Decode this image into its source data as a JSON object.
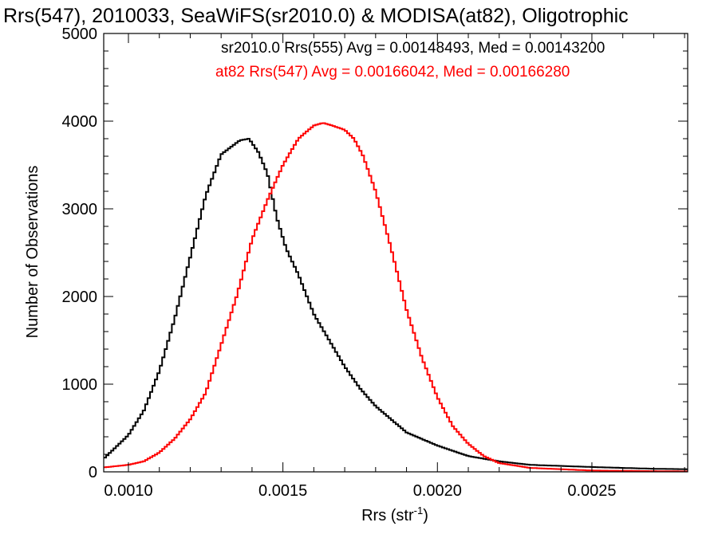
{
  "chart_data": {
    "type": "line",
    "title": "Rrs(547), 2010033, SeaWiFS(sr2010.0) & MODISA(at82), Oligotrophic",
    "xlabel": "Rrs (str",
    "xlabel_sup": "-1",
    "xlabel_close": ")",
    "ylabel": "Number of Observations",
    "xlim": [
      0.00092,
      0.00281
    ],
    "ylim": [
      0,
      5000
    ],
    "xticks": [
      0.001,
      0.0015,
      0.002,
      0.0025
    ],
    "xtick_labels": [
      "0.0010",
      "0.0015",
      "0.0020",
      "0.0025"
    ],
    "yticks": [
      0,
      1000,
      2000,
      3000,
      4000,
      5000
    ],
    "ytick_labels": [
      "0",
      "1000",
      "2000",
      "3000",
      "4000",
      "5000"
    ],
    "grid": false,
    "legend_placement": "top",
    "annotations": [
      {
        "text": "sr2010.0 Rrs(555) Avg = 0.00148493, Med = 0.00143200",
        "color": "#000000"
      },
      {
        "text": "at82 Rrs(547) Avg = 0.00166042, Med = 0.00166280",
        "color": "#ff0000"
      }
    ],
    "series": [
      {
        "name": "sr2010.0 Rrs(555)",
        "color": "#000000",
        "x": [
          0.00092,
          0.00095,
          0.001,
          0.00105,
          0.0011,
          0.00115,
          0.0012,
          0.00125,
          0.0013,
          0.00133,
          0.00136,
          0.00139,
          0.00142,
          0.00145,
          0.00148,
          0.00151,
          0.00155,
          0.0016,
          0.00165,
          0.0017,
          0.00175,
          0.0018,
          0.0019,
          0.002,
          0.0021,
          0.0022,
          0.0023,
          0.0025,
          0.0027,
          0.00281
        ],
        "y": [
          150,
          250,
          420,
          700,
          1150,
          1750,
          2450,
          3150,
          3620,
          3700,
          3780,
          3800,
          3650,
          3400,
          2900,
          2550,
          2250,
          1800,
          1500,
          1200,
          950,
          750,
          450,
          300,
          180,
          120,
          80,
          55,
          35,
          30
        ]
      },
      {
        "name": "at82 Rrs(547)",
        "color": "#ff0000",
        "x": [
          0.00092,
          0.001,
          0.00105,
          0.0011,
          0.00115,
          0.0012,
          0.00125,
          0.0013,
          0.00135,
          0.0014,
          0.00145,
          0.0015,
          0.00155,
          0.0016,
          0.00163,
          0.00166,
          0.0017,
          0.00173,
          0.00176,
          0.0018,
          0.00185,
          0.0019,
          0.00195,
          0.002,
          0.00205,
          0.0021,
          0.00215,
          0.0022,
          0.0023,
          0.0025,
          0.0027,
          0.00281
        ],
        "y": [
          50,
          80,
          120,
          220,
          380,
          600,
          900,
          1450,
          2000,
          2650,
          3100,
          3500,
          3800,
          3950,
          3980,
          3950,
          3900,
          3800,
          3600,
          3200,
          2550,
          1850,
          1300,
          850,
          520,
          320,
          180,
          100,
          45,
          15,
          8,
          5
        ]
      }
    ]
  }
}
